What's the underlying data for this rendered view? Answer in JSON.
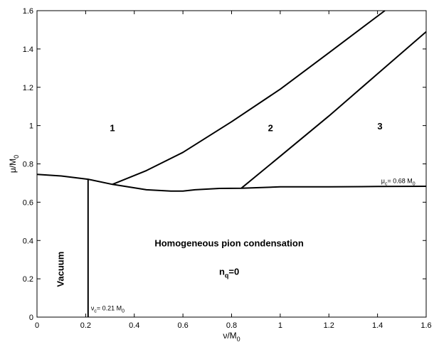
{
  "chart_data": {
    "type": "line",
    "title": "",
    "xlabel": "ν/M",
    "xlabel_sub": "0",
    "ylabel": "μ/M",
    "ylabel_sub": "0",
    "xlim": [
      0,
      1.6
    ],
    "ylim": [
      0,
      1.6
    ],
    "xticks": [
      0,
      0.2,
      0.4,
      0.6,
      0.8,
      1,
      1.2,
      1.4,
      1.6
    ],
    "yticks": [
      0,
      0.2,
      0.4,
      0.6,
      0.8,
      1,
      1.2,
      1.4,
      1.6
    ],
    "grid": false,
    "series": [
      {
        "x": [
          0,
          0.1,
          0.21,
          0.31,
          0.45,
          0.55,
          0.6,
          0.65,
          0.75,
          0.84,
          1.0,
          1.2,
          1.4,
          1.6
        ],
        "y": [
          0.745,
          0.737,
          0.72,
          0.693,
          0.665,
          0.658,
          0.658,
          0.665,
          0.672,
          0.673,
          0.68,
          0.68,
          0.682,
          0.683
        ]
      },
      {
        "x": [
          0.21,
          0.21
        ],
        "y": [
          0,
          0.72
        ]
      },
      {
        "x": [
          0.31,
          0.45,
          0.6,
          0.8,
          1.0,
          1.2,
          1.43
        ],
        "y": [
          0.693,
          0.765,
          0.86,
          1.02,
          1.19,
          1.38,
          1.6
        ]
      },
      {
        "x": [
          0.84,
          1.0,
          1.2,
          1.4,
          1.6
        ],
        "y": [
          0.673,
          0.84,
          1.05,
          1.27,
          1.49
        ]
      }
    ],
    "region_labels": [
      {
        "text": "1",
        "x": 0.31,
        "y": 0.97
      },
      {
        "text": "2",
        "x": 0.96,
        "y": 0.97
      },
      {
        "text": "3",
        "x": 1.41,
        "y": 0.98
      },
      {
        "text": "Homogeneous pion condensation",
        "x": 0.79,
        "y": 0.37
      },
      {
        "text": "Vacuum",
        "x": 0.11,
        "y": 0.25,
        "rotated": true
      },
      {
        "text": "n",
        "sub": "q",
        "rest": "=0",
        "x": 0.79,
        "y": 0.22
      }
    ],
    "annotations": [
      {
        "text": "μ",
        "sub": "c",
        "rest": "= 0.68 M",
        "sub2": "0",
        "x": 1.415,
        "y": 0.7
      },
      {
        "text": "ν",
        "sub": "c",
        "rest": "= 0.21 M",
        "sub2": "0",
        "x": 0.222,
        "y": 0.035
      }
    ]
  }
}
